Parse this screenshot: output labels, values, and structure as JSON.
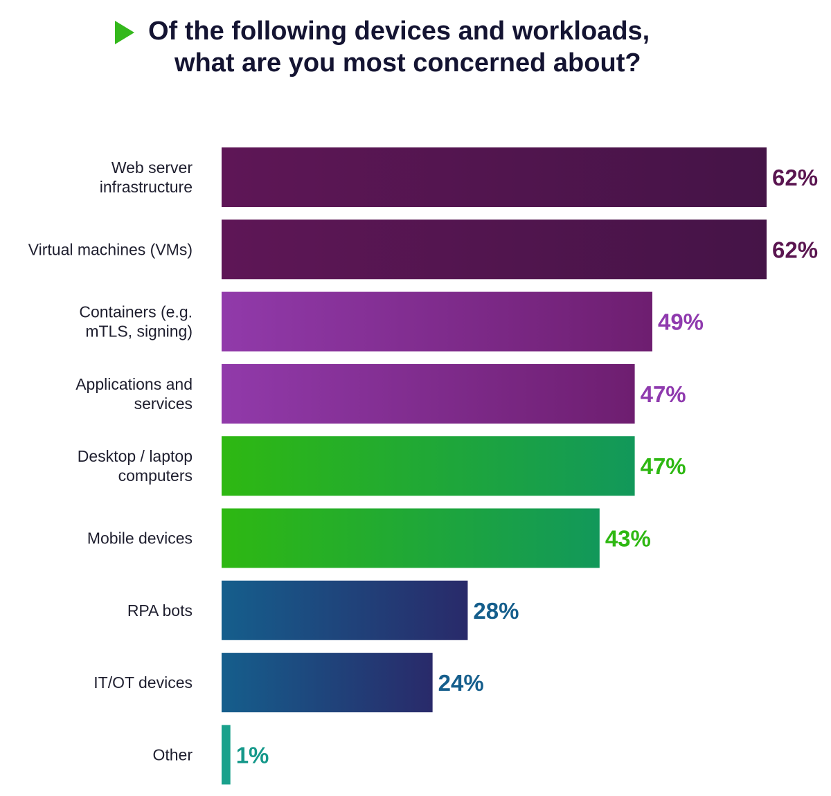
{
  "title": {
    "line1": "Of the following devices and workloads,",
    "line2": "what are you most concerned about?",
    "icon": "play-triangle-icon",
    "icon_color": "#34b81c"
  },
  "chart_data": {
    "type": "bar",
    "orientation": "horizontal",
    "title": "Of the following devices and workloads, what are you most concerned about?",
    "xlabel": "",
    "ylabel": "",
    "xlim": [
      0,
      62
    ],
    "grid": false,
    "value_suffix": "%",
    "categories": [
      [
        "Web server",
        "infrastructure"
      ],
      [
        "Virtual machines (VMs)"
      ],
      [
        "Containers (e.g.",
        "mTLS, signing)"
      ],
      [
        "Applications and",
        "services"
      ],
      [
        "Desktop / laptop",
        "computers"
      ],
      [
        "Mobile devices"
      ],
      [
        "RPA bots"
      ],
      [
        "IT/OT devices"
      ],
      [
        "Other"
      ]
    ],
    "values": [
      62,
      62,
      49,
      47,
      47,
      43,
      28,
      24,
      1
    ],
    "value_labels": [
      "62%",
      "62%",
      "49%",
      "47%",
      "47%",
      "43%",
      "28%",
      "24%",
      "1%"
    ],
    "bar_colors": [
      [
        "#5e1656",
        "#451447"
      ],
      [
        "#5e1656",
        "#451447"
      ],
      [
        "#913aaa",
        "#6e1e70"
      ],
      [
        "#913aaa",
        "#6e1e70"
      ],
      [
        "#2eb812",
        "#12985a"
      ],
      [
        "#2eb812",
        "#12985a"
      ],
      [
        "#155e8c",
        "#292a6a"
      ],
      [
        "#155e8c",
        "#292a6a"
      ],
      [
        "#1aa18c",
        "#1aa18c"
      ]
    ],
    "label_colors": [
      "#5a1550",
      "#5a1550",
      "#8f3aae",
      "#8f3aae",
      "#2eb812",
      "#2eb812",
      "#155e8c",
      "#155e8c",
      "#15988a"
    ]
  }
}
